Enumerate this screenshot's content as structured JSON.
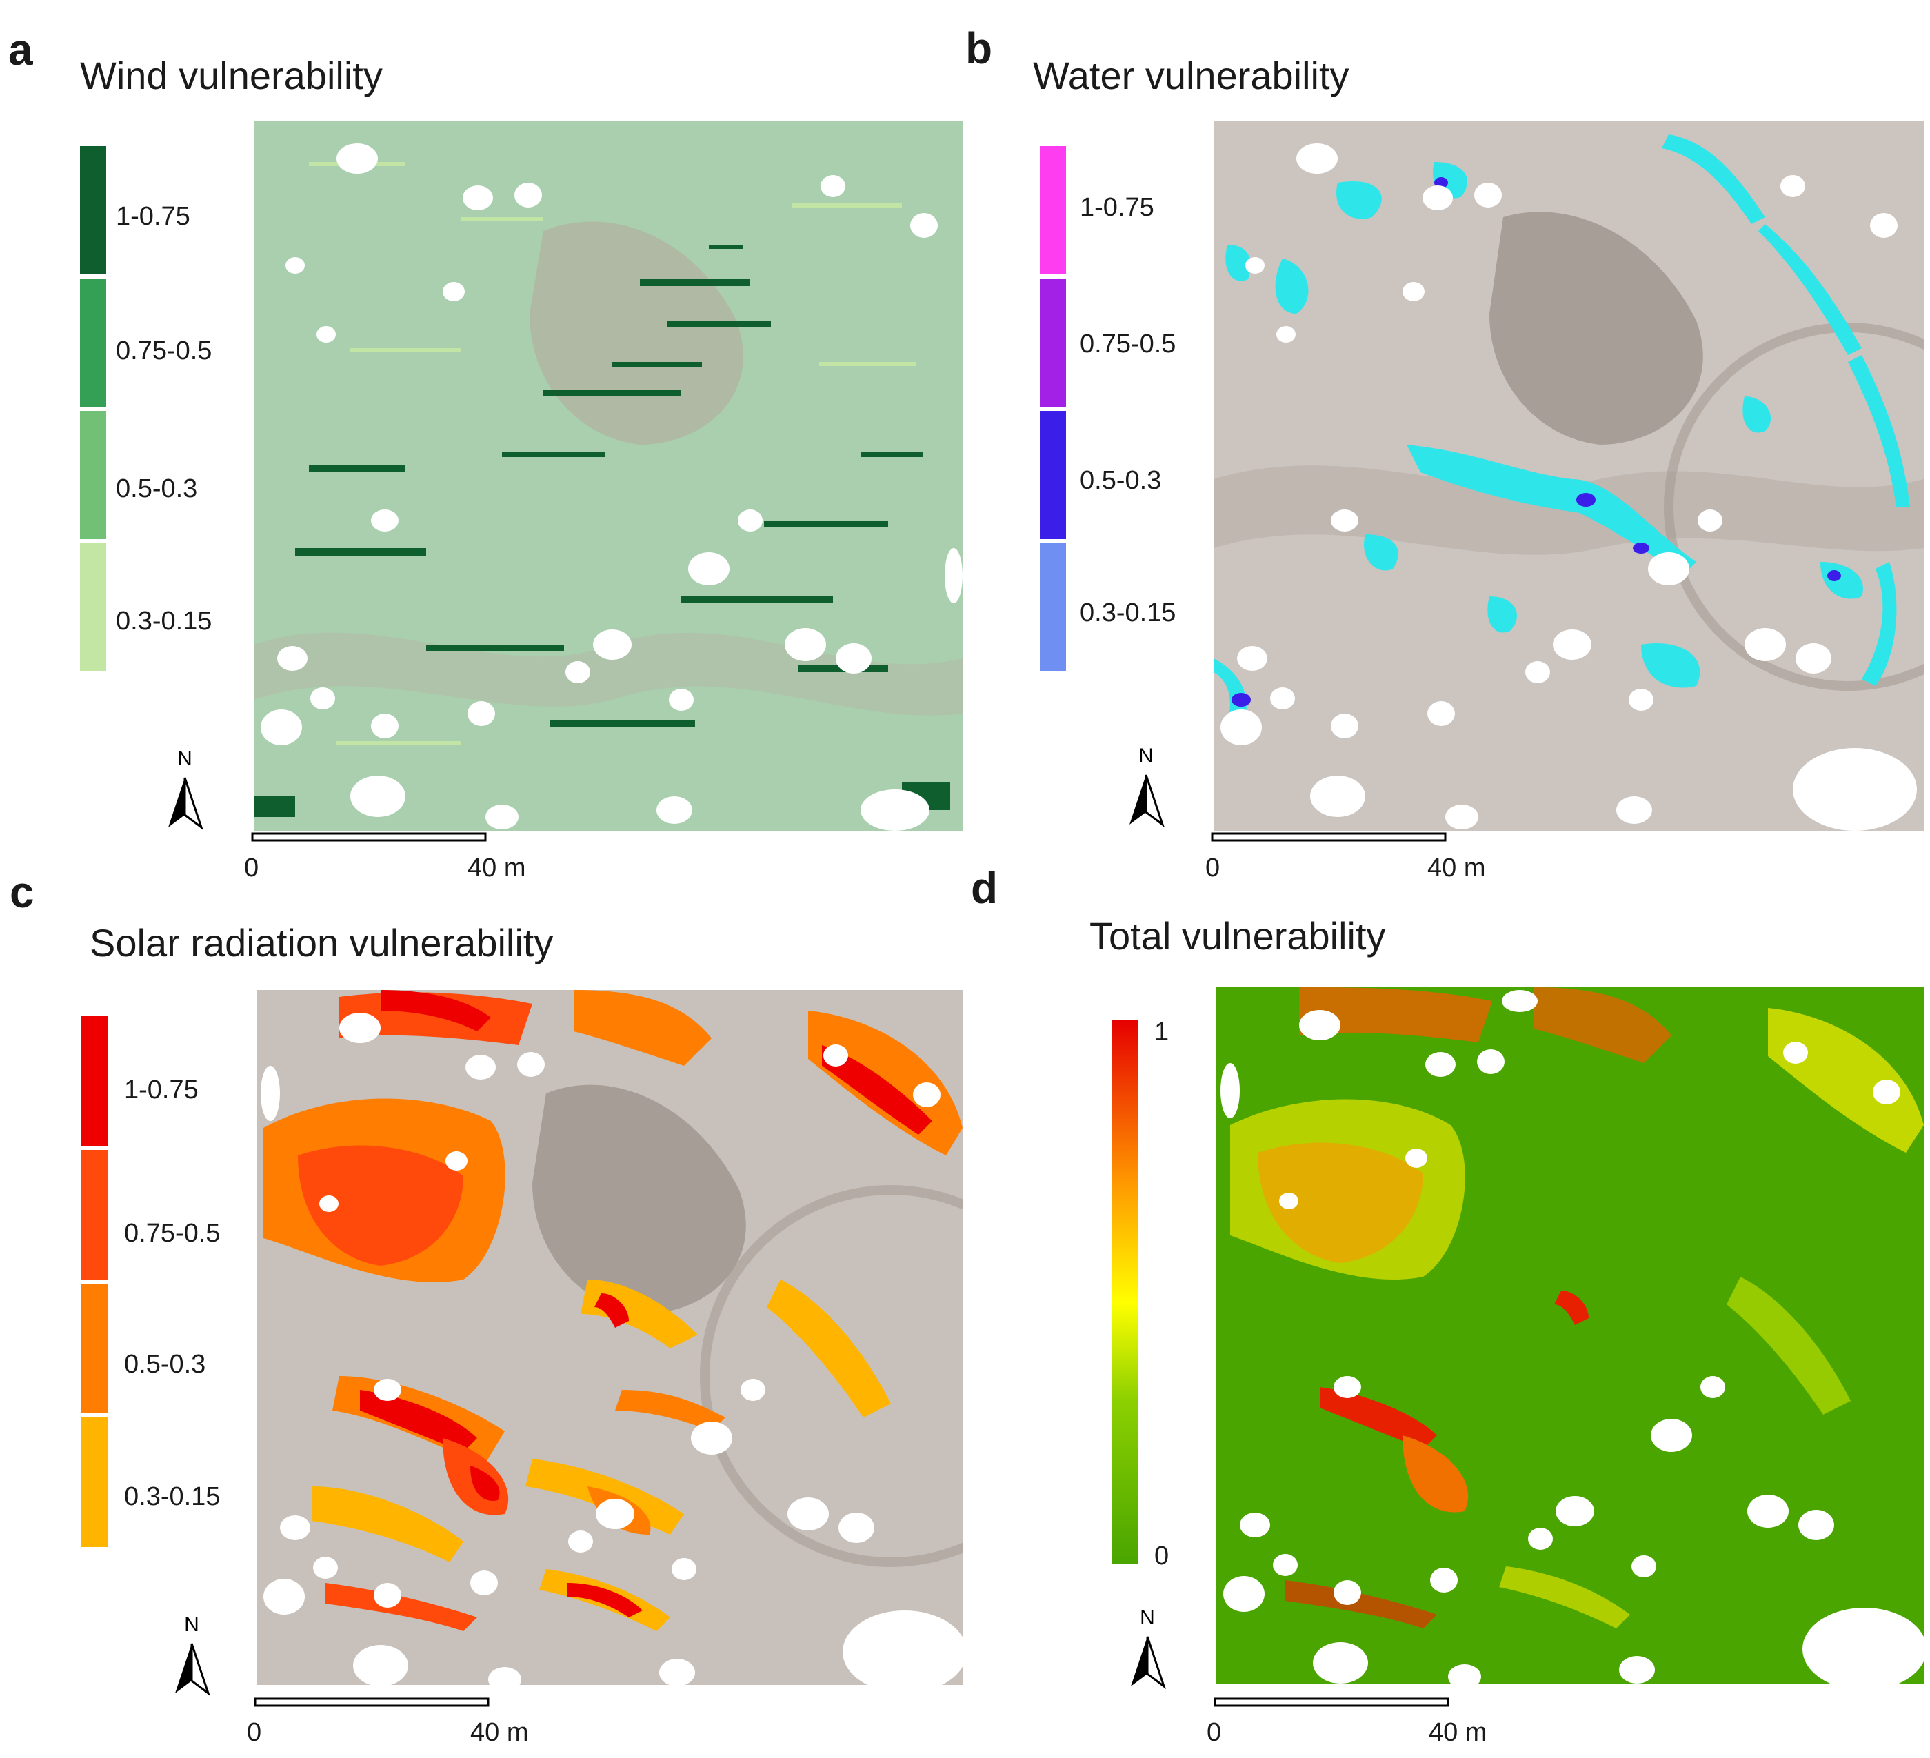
{
  "panels": {
    "a": {
      "letter": "a",
      "title": "Wind vulnerability",
      "legend": [
        {
          "label": "1-0.75",
          "color": "#0f5e2e"
        },
        {
          "label": "0.75-0.5",
          "color": "#33a056"
        },
        {
          "label": "0.5-0.3",
          "color": "#72c076"
        },
        {
          "label": "0.3-0.15",
          "color": "#c4e6a4"
        }
      ],
      "scale": {
        "start": "0",
        "end": "40 m"
      },
      "north": "N"
    },
    "b": {
      "letter": "b",
      "title": "Water vulnerability",
      "legend": [
        {
          "label": "1-0.75",
          "color": "#ff3df0"
        },
        {
          "label": "0.75-0.5",
          "color": "#a321e6"
        },
        {
          "label": "0.5-0.3",
          "color": "#3b1fe8"
        },
        {
          "label": "0.3-0.15",
          "color": "#6f8ff2"
        }
      ],
      "scale": {
        "start": "0",
        "end": "40 m"
      },
      "north": "N"
    },
    "c": {
      "letter": "c",
      "title": "Solar radiation vulnerability",
      "legend": [
        {
          "label": "1-0.75",
          "color": "#ee0000"
        },
        {
          "label": "0.75-0.5",
          "color": "#ff4a0c"
        },
        {
          "label": "0.5-0.3",
          "color": "#ff7d00"
        },
        {
          "label": "0.3-0.15",
          "color": "#ffb400"
        }
      ],
      "scale": {
        "start": "0",
        "end": "40 m"
      },
      "north": "N"
    },
    "d": {
      "letter": "d",
      "title": "Total vulnerability",
      "gradient": {
        "max_label": "1",
        "min_label": "0",
        "colors": [
          "#e60000",
          "#ff9900",
          "#ffff00",
          "#4aa500"
        ]
      },
      "scale": {
        "start": "0",
        "end": "40 m"
      },
      "north": "N"
    }
  }
}
